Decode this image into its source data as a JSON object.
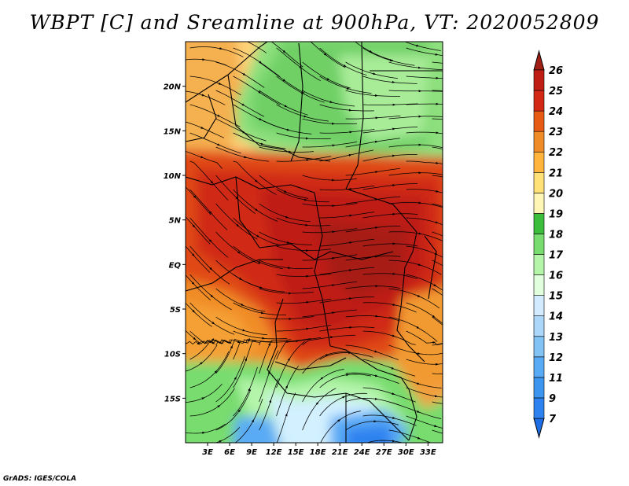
{
  "title": "WBPT [C] and Sreamline at 900hPa, VT: 2020052809",
  "credit": "GrADS: IGES/COLA",
  "map": {
    "lon_range": [
      0,
      35
    ],
    "lat_range": [
      -20,
      25
    ],
    "lon_ticks": [
      {
        "value": 3,
        "label": "3E"
      },
      {
        "value": 6,
        "label": "6E"
      },
      {
        "value": 9,
        "label": "9E"
      },
      {
        "value": 12,
        "label": "12E"
      },
      {
        "value": 15,
        "label": "15E"
      },
      {
        "value": 18,
        "label": "18E"
      },
      {
        "value": 21,
        "label": "21E"
      },
      {
        "value": 24,
        "label": "24E"
      },
      {
        "value": 27,
        "label": "27E"
      },
      {
        "value": 30,
        "label": "30E"
      },
      {
        "value": 33,
        "label": "33E"
      }
    ],
    "lat_ticks": [
      {
        "value": 20,
        "label": "20N"
      },
      {
        "value": 15,
        "label": "15N"
      },
      {
        "value": 10,
        "label": "10N"
      },
      {
        "value": 5,
        "label": "5N"
      },
      {
        "value": 0,
        "label": "EQ"
      },
      {
        "value": -5,
        "label": "5S"
      },
      {
        "value": -10,
        "label": "10S"
      },
      {
        "value": -15,
        "label": "15S"
      }
    ]
  },
  "colorbar": {
    "levels": [
      7,
      9,
      11,
      12,
      13,
      14,
      15,
      16,
      17,
      18,
      19,
      20,
      21,
      22,
      23,
      24,
      25,
      26
    ],
    "colors": [
      "#1e6ee6",
      "#2d82f0",
      "#3c96f0",
      "#5aabf5",
      "#82c3f5",
      "#aad7fa",
      "#d2ebff",
      "#e1ffdc",
      "#b4f5aa",
      "#78dc6e",
      "#3cbe3c",
      "#fff5b4",
      "#ffe178",
      "#ffb43c",
      "#f08c28",
      "#e65a14",
      "#d22814",
      "#be1e14",
      "#a01e14"
    ]
  }
}
